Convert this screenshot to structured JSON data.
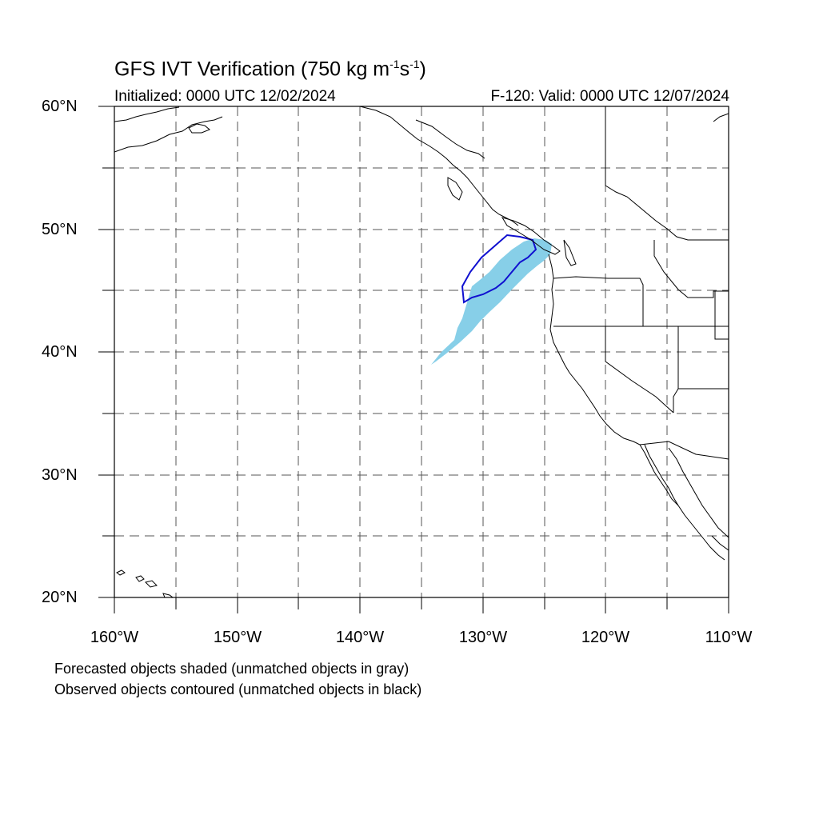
{
  "title": {
    "main": "GFS IVT Verification (750 kg m",
    "sup1": "-1",
    "mid": "s",
    "sup2": "-1",
    "end": ")"
  },
  "init_text": "Initialized: 0000 UTC 12/02/2024",
  "valid_text": "F-120: Valid: 0000 UTC 12/07/2024",
  "axes": {
    "lon_labels": [
      "160°W",
      "150°W",
      "140°W",
      "130°W",
      "120°W",
      "110°W"
    ],
    "lat_labels": [
      "60°N",
      "50°N",
      "40°N",
      "30°N",
      "20°N"
    ],
    "lon_range": [
      -160,
      -110
    ],
    "lat_range": [
      20,
      60
    ],
    "grid": "dashed every 5 degrees"
  },
  "legend": {
    "line1": "Forecasted objects shaded (unmatched objects in gray)",
    "line2": "Observed objects contoured (unmatched objects in black)"
  },
  "colors": {
    "forecast_fill": "#87cfe8",
    "observed_contour": "#1010d0",
    "coastline": "#000000",
    "grid": "#555555"
  }
}
